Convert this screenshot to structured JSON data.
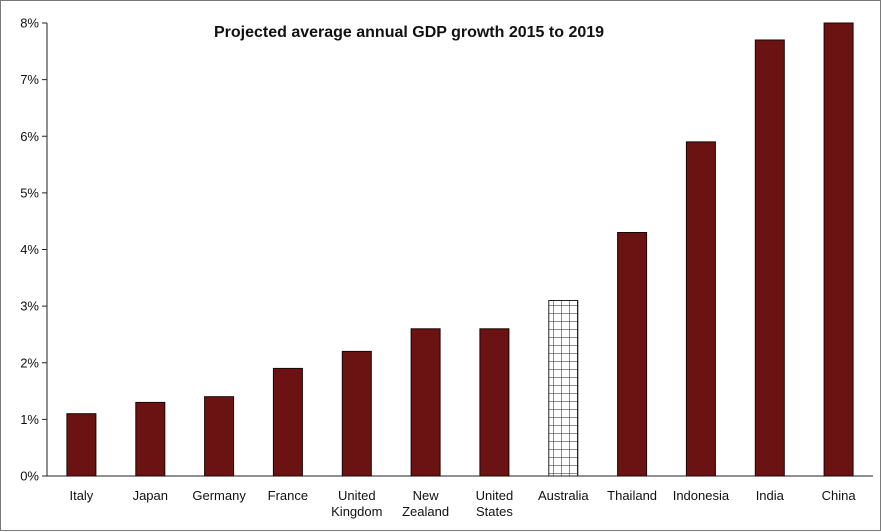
{
  "chart_data": {
    "type": "bar",
    "title": "Projected average annual GDP growth 2015 to 2019",
    "xlabel": "",
    "ylabel": "",
    "ylim": [
      0,
      8
    ],
    "yticks": [
      "0%",
      "1%",
      "2%",
      "3%",
      "4%",
      "5%",
      "6%",
      "7%",
      "8%"
    ],
    "grid": false,
    "legend": "none",
    "categories": [
      [
        "Italy"
      ],
      [
        "Japan"
      ],
      [
        "Germany"
      ],
      [
        "France"
      ],
      [
        "United",
        "Kingdom"
      ],
      [
        "New",
        "Zealand"
      ],
      [
        "United",
        "States"
      ],
      [
        "Australia"
      ],
      [
        "Thailand"
      ],
      [
        "Indonesia"
      ],
      [
        "India"
      ],
      [
        "China"
      ]
    ],
    "values": [
      1.1,
      1.3,
      1.4,
      1.9,
      2.2,
      2.6,
      2.6,
      3.1,
      4.3,
      5.9,
      7.7,
      8.0
    ],
    "highlighted_category": "Australia",
    "colors": {
      "bar": "#6b1212",
      "bar_edge": "#1a0505",
      "highlight_fill": "#ffffff",
      "highlight_grid": "#222222"
    }
  }
}
